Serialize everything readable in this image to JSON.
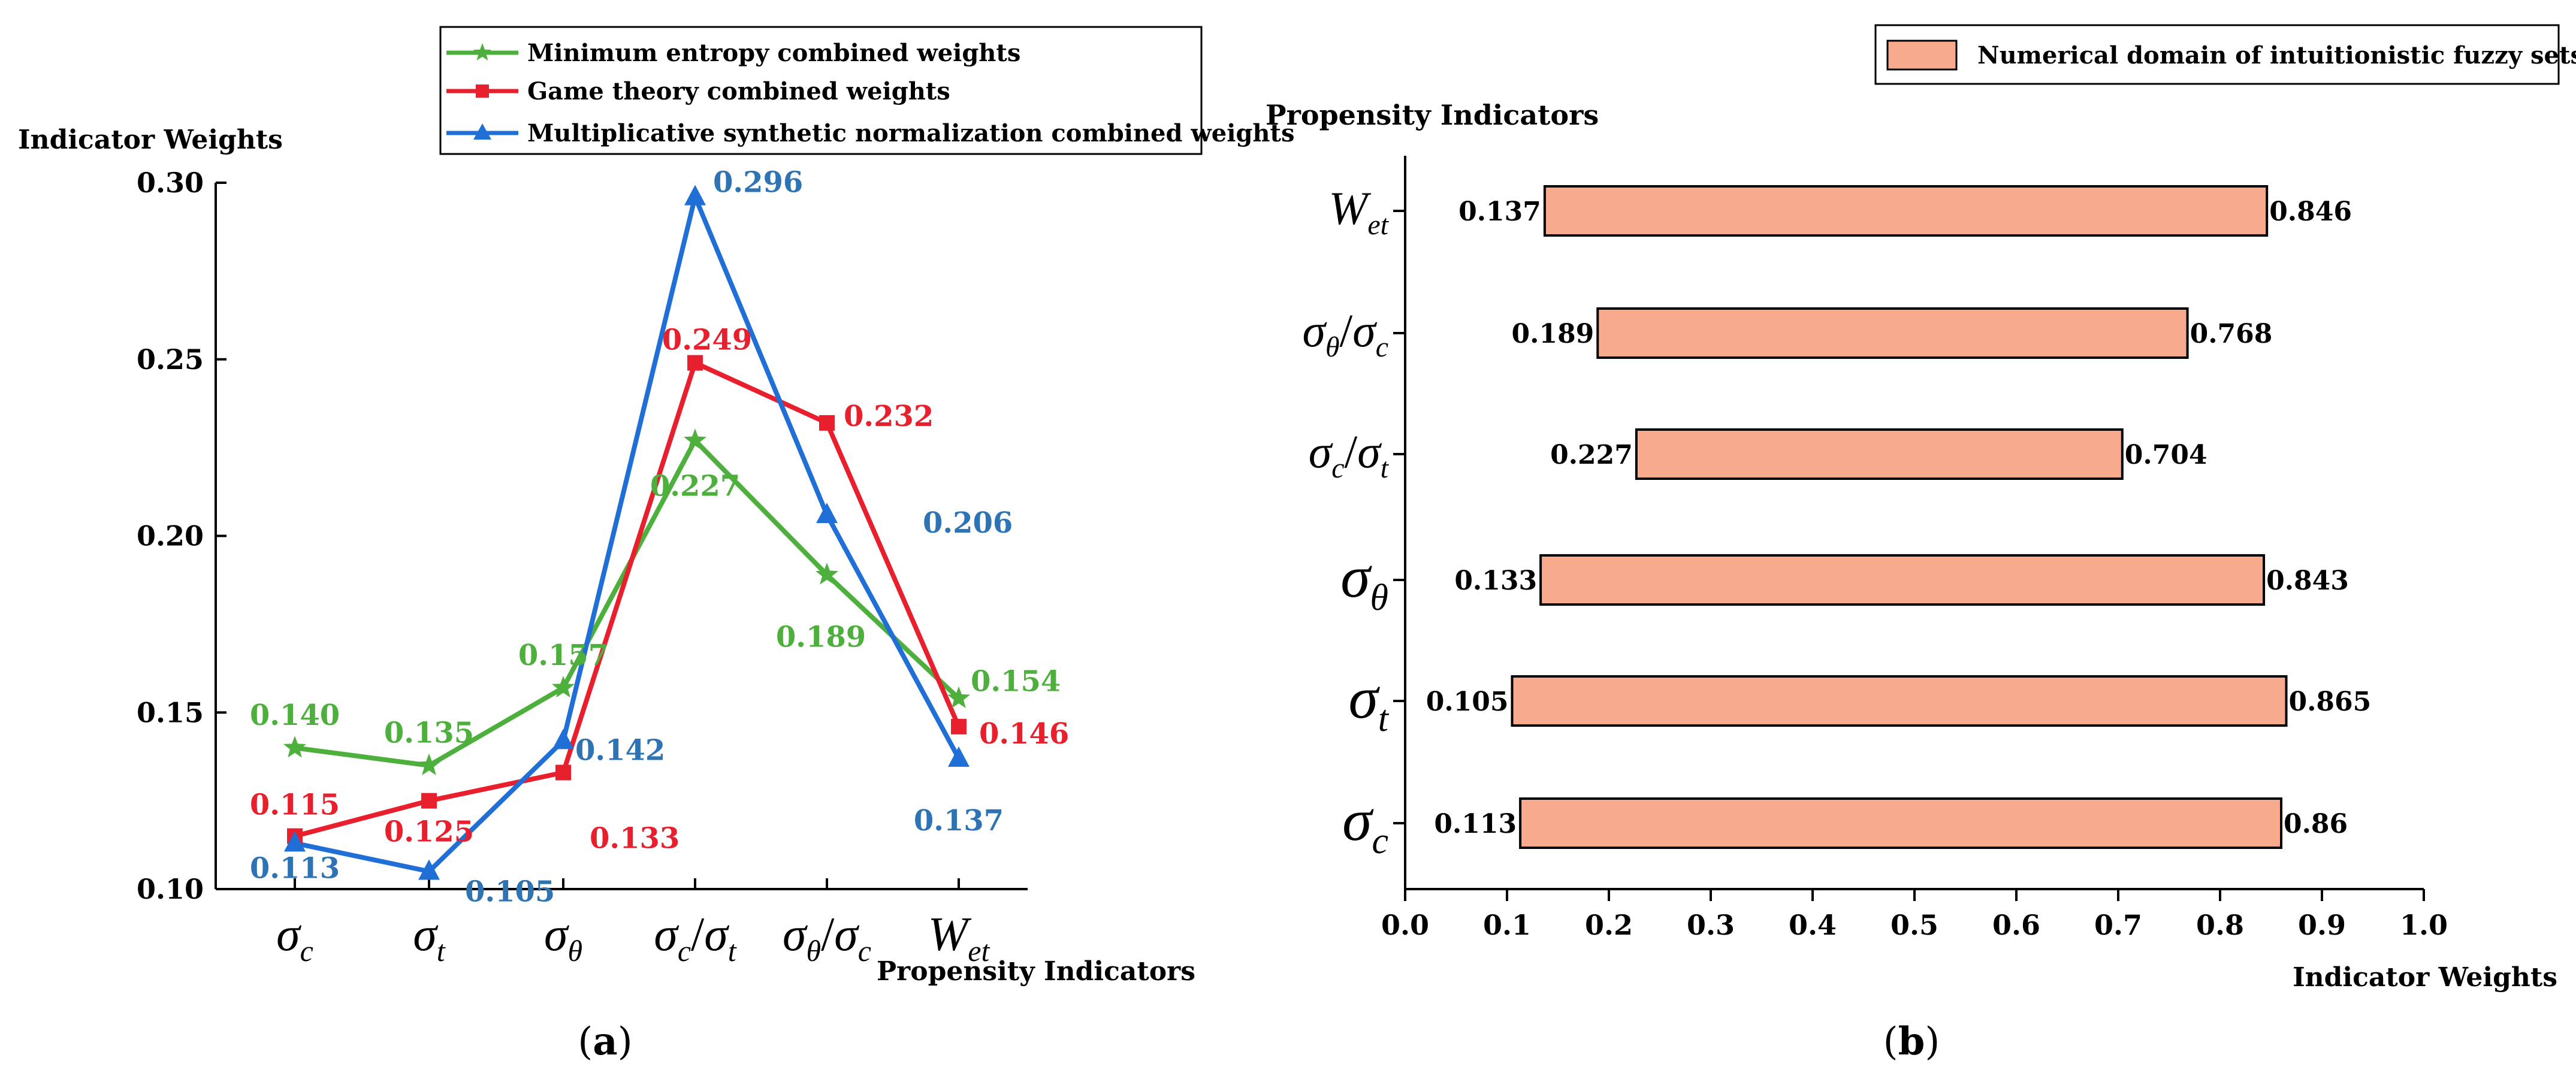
{
  "chart_data": [
    {
      "panel_label": "a",
      "type": "line",
      "ylabel": "Indicator Weights",
      "xlabel": "Propensity Indicators",
      "ylim": [
        0.1,
        0.3
      ],
      "yticks": [
        "0.10",
        "0.15",
        "0.20",
        "0.25",
        "0.30"
      ],
      "yticks_values": [
        0.1,
        0.15,
        0.2,
        0.25,
        0.3
      ],
      "categories": [
        {
          "base": "σ",
          "sub": "c"
        },
        {
          "base": "σ",
          "sub": "t"
        },
        {
          "base": "σ",
          "sub": "θ"
        },
        {
          "base": "σ",
          "sub": "c",
          "den_base": "σ",
          "den_sub": "t"
        },
        {
          "base": "σ",
          "sub": "θ",
          "den_base": "σ",
          "den_sub": "c"
        },
        {
          "base": "W",
          "sub": "et"
        }
      ],
      "series": [
        {
          "name": "Minimum entropy combined weights",
          "marker": "star",
          "color": "#4daf3c",
          "values": [
            0.14,
            0.135,
            0.157,
            0.227,
            0.189,
            0.154
          ],
          "labels": [
            "0.140",
            "0.135",
            "0.157",
            "0.227",
            "0.189",
            "0.154"
          ]
        },
        {
          "name": "Game theory combined weights",
          "marker": "square",
          "color": "#e8202e",
          "values": [
            0.115,
            0.125,
            0.133,
            0.249,
            0.232,
            0.146
          ],
          "labels": [
            "0.115",
            "0.125",
            "0.133",
            "0.249",
            "0.232",
            "0.146"
          ]
        },
        {
          "name": "Multiplicative synthetic normalization combined weights",
          "marker": "triangle",
          "color": "#1f6fd6",
          "label_color": "#2e73b4",
          "values": [
            0.113,
            0.105,
            0.142,
            0.296,
            0.206,
            0.137
          ],
          "labels": [
            "0.113",
            "0.105",
            "0.142",
            "0.296",
            "0.206",
            "0.137"
          ]
        }
      ],
      "legend_position": "top-right"
    },
    {
      "panel_label": "b",
      "type": "bar",
      "orientation": "horizontal-range",
      "ylabel": "Propensity Indicators",
      "xlabel": "Indicator Weights",
      "xlim": [
        0.0,
        1.0
      ],
      "xticks": [
        "0.0",
        "0.1",
        "0.2",
        "0.3",
        "0.4",
        "0.5",
        "0.6",
        "0.7",
        "0.8",
        "0.9",
        "1.0"
      ],
      "xticks_values": [
        0.0,
        0.1,
        0.2,
        0.3,
        0.4,
        0.5,
        0.6,
        0.7,
        0.8,
        0.9,
        1.0
      ],
      "bar_color": "#f7ab8c",
      "legend_label": "Numerical domain of intuitionistic fuzzy sets",
      "legend_position": "top-right",
      "categories": [
        {
          "base": "W",
          "sub": "et"
        },
        {
          "base": "σ",
          "sub": "θ",
          "den_base": "σ",
          "den_sub": "c"
        },
        {
          "base": "σ",
          "sub": "c",
          "den_base": "σ",
          "den_sub": "t"
        },
        {
          "base": "σ",
          "sub": "θ"
        },
        {
          "base": "σ",
          "sub": "t"
        },
        {
          "base": "σ",
          "sub": "c"
        }
      ],
      "low": [
        0.137,
        0.189,
        0.227,
        0.133,
        0.105,
        0.113
      ],
      "high": [
        0.846,
        0.768,
        0.704,
        0.843,
        0.865,
        0.86
      ],
      "low_labels": [
        "0.137",
        "0.189",
        "0.227",
        "0.133",
        "0.105",
        "0.113"
      ],
      "high_labels": [
        "0.846",
        "0.768",
        "0.704",
        "0.843",
        "0.865",
        "0.86"
      ]
    }
  ]
}
